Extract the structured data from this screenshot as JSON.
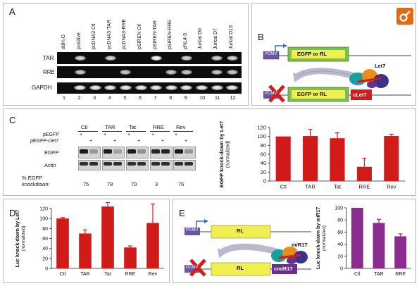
{
  "panels": {
    "a": "A",
    "b": "B",
    "c": "C",
    "d": "D",
    "e": "E"
  },
  "gel_a": {
    "lanes": [
      "ddH₂O",
      "positive",
      "pcDNA3 Ctl",
      "pcDNA3-TAR",
      "pcDNA3-RRE",
      "pSIREN Ctl",
      "pSIREN-TAR",
      "pSIREN-RRE",
      "pNL4-3",
      "Jurkat D0",
      "Jurkat D7",
      "Jurkat D13"
    ],
    "numbers": [
      "1",
      "2",
      "3",
      "4",
      "5",
      "6",
      "7",
      "8",
      "9",
      "10",
      "11",
      "12"
    ],
    "rows": [
      "TAR",
      "RRE",
      "GAPDH"
    ]
  },
  "panel_b": {
    "promoter": "PCMV",
    "reporter": "EGFP or RL",
    "mirna": "Let7",
    "target": "cLet7"
  },
  "panel_c": {
    "conditions": [
      "Ctl",
      "TAR",
      "Tat",
      "RRE",
      "Rev"
    ],
    "row_labels": [
      "pEGFP",
      "pEGFP-clet7",
      "EGFP",
      "Actin"
    ],
    "plus": "+",
    "knockdown_label_1": "% EGFP",
    "knockdown_label_2": "knockdown:",
    "knockdown": [
      "75",
      "78",
      "70",
      "3",
      "76"
    ]
  },
  "panel_e": {
    "promoter": "PCMV",
    "reporter": "RL",
    "mirna": "miR17",
    "target": "cmiR17"
  },
  "chart_data": [
    {
      "id": "c",
      "type": "bar",
      "categories": [
        "Ctl",
        "TAR",
        "Tat",
        "RRE",
        "Rev"
      ],
      "values": [
        100,
        101,
        96,
        32,
        101
      ],
      "errors": [
        0,
        15,
        12,
        19,
        4
      ],
      "ylim": [
        0,
        120
      ],
      "yticks": [
        "0",
        "20",
        "40",
        "60",
        "80",
        "100",
        "120"
      ],
      "ylabel": "EGFP knock-down by Let7",
      "ylabel_sub": "(normalized)",
      "color": "#d11b1b"
    },
    {
      "id": "d",
      "type": "bar",
      "categories": [
        "Ctl",
        "TAR",
        "Tat",
        "RRE",
        "Rev"
      ],
      "values": [
        100,
        70,
        124,
        42,
        91
      ],
      "errors": [
        2,
        7,
        8,
        3,
        38
      ],
      "ylim": [
        0,
        120
      ],
      "yticks": [
        "0",
        "20",
        "40",
        "60",
        "80",
        "100",
        "120"
      ],
      "ylabel": "Luc knock-down by Let7",
      "ylabel_sub": "(normalized)",
      "color": "#d11b1b"
    },
    {
      "id": "e",
      "type": "bar",
      "categories": [
        "Ctl",
        "TAR",
        "RRE"
      ],
      "values": [
        100,
        75,
        53
      ],
      "errors": [
        0,
        6,
        4
      ],
      "ylim": [
        0,
        100
      ],
      "yticks": [
        "0",
        "20",
        "40",
        "60",
        "80",
        "100"
      ],
      "ylabel": "Luc knock-down by miR17",
      "ylabel_sub": "(normalized)",
      "color": "#8b2c8e"
    }
  ]
}
